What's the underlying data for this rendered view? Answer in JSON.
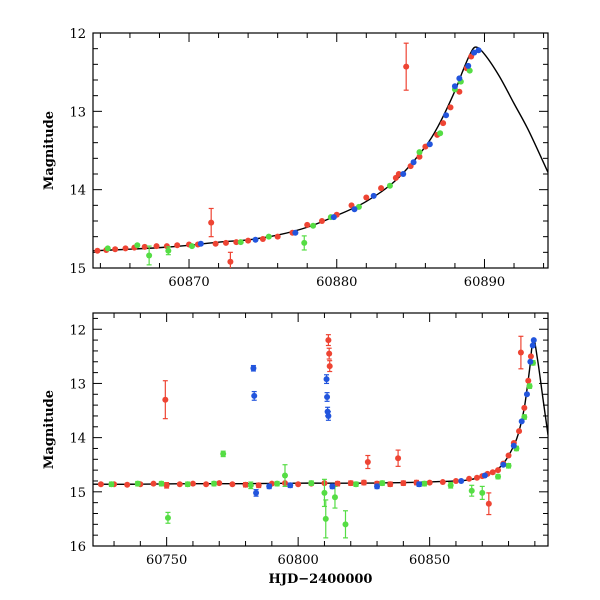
{
  "chart_data": [
    {
      "type": "scatter",
      "title": "",
      "xlabel": "",
      "ylabel": "Magnitude",
      "xlim": [
        60863.5,
        60894.3
      ],
      "ylim": [
        15.0,
        12.0
      ],
      "y_inverted": true,
      "grid": false,
      "xticks": [
        60870,
        60880,
        60890
      ],
      "xtick_labels": [
        "60870",
        "60880",
        "60890"
      ],
      "yticks": [
        12,
        13,
        14,
        15
      ],
      "ytick_labels": [
        "12",
        "13",
        "14",
        "15"
      ],
      "colors": {
        "red": "#ee4433",
        "green": "#55dd44",
        "blue": "#2255dd",
        "model": "#000000"
      },
      "model_curve": {
        "name": "",
        "points": [
          [
            60863.5,
            14.78
          ],
          [
            60866,
            14.76
          ],
          [
            60868,
            14.74
          ],
          [
            60870,
            14.71
          ],
          [
            60872,
            14.67
          ],
          [
            60874,
            14.64
          ],
          [
            60876,
            14.58
          ],
          [
            60878,
            14.48
          ],
          [
            60880,
            14.33
          ],
          [
            60882,
            14.15
          ],
          [
            60884,
            13.88
          ],
          [
            60886,
            13.45
          ],
          [
            60887,
            13.14
          ],
          [
            60888,
            12.74
          ],
          [
            60888.5,
            12.5
          ],
          [
            60889,
            12.28
          ],
          [
            60889.4,
            12.18
          ],
          [
            60890,
            12.27
          ],
          [
            60891,
            12.55
          ],
          [
            60892,
            12.9
          ],
          [
            60893,
            13.25
          ],
          [
            60894.3,
            13.78
          ]
        ]
      },
      "series": [
        {
          "color": "red",
          "points": [
            [
              60863.8,
              14.78
            ],
            [
              60864.4,
              14.77
            ],
            [
              60865,
              14.76
            ],
            [
              60865.7,
              14.75
            ],
            [
              60866.3,
              14.74
            ],
            [
              60867,
              14.73
            ],
            [
              60867.8,
              14.72
            ],
            [
              60868.5,
              14.72
            ],
            [
              60869.2,
              14.71
            ],
            [
              60870,
              14.7
            ],
            [
              60870.6,
              14.7
            ],
            [
              60871.5,
              14.42
            ],
            [
              60871.8,
              14.69
            ],
            [
              60872.5,
              14.68
            ],
            [
              60872.8,
              14.92
            ],
            [
              60873.2,
              14.67
            ],
            [
              60874,
              14.65
            ],
            [
              60875,
              14.63
            ],
            [
              60876,
              14.6
            ],
            [
              60877,
              14.55
            ],
            [
              60878,
              14.45
            ],
            [
              60879,
              14.4
            ],
            [
              60880,
              14.32
            ],
            [
              60881,
              14.2
            ],
            [
              60882,
              14.1
            ],
            [
              60883,
              13.98
            ],
            [
              60884,
              13.85
            ],
            [
              60884.2,
              13.8
            ],
            [
              60884.7,
              12.43
            ],
            [
              60885,
              13.7
            ],
            [
              60885.6,
              13.58
            ],
            [
              60886,
              13.45
            ],
            [
              60886.8,
              13.3
            ],
            [
              60887.2,
              13.15
            ],
            [
              60887.7,
              12.95
            ],
            [
              60888.3,
              12.75
            ],
            [
              60888.8,
              12.45
            ],
            [
              60889.1,
              12.3
            ]
          ],
          "errors": [
            0.02,
            0.02,
            0.02,
            0.02,
            0.02,
            0.02,
            0.02,
            0.02,
            0.02,
            0.02,
            0.02,
            0.18,
            0.02,
            0.02,
            0.12,
            0.02,
            0.02,
            0.02,
            0.02,
            0.02,
            0.02,
            0.02,
            0.02,
            0.02,
            0.02,
            0.02,
            0.02,
            0.02,
            0.3,
            0.02,
            0.02,
            0.02,
            0.02,
            0.02,
            0.02,
            0.02,
            0.02,
            0.02
          ]
        },
        {
          "color": "green",
          "points": [
            [
              60864.5,
              14.75
            ],
            [
              60866.5,
              14.71
            ],
            [
              60867.3,
              14.84
            ],
            [
              60868.6,
              14.78
            ],
            [
              60870.2,
              14.72
            ],
            [
              60873.5,
              14.67
            ],
            [
              60875.4,
              14.6
            ],
            [
              60877.8,
              14.68
            ],
            [
              60878.4,
              14.46
            ],
            [
              60879.6,
              14.35
            ],
            [
              60881.5,
              14.22
            ],
            [
              60883.6,
              13.95
            ],
            [
              60885.6,
              13.52
            ],
            [
              60887,
              13.28
            ],
            [
              60888,
              12.72
            ],
            [
              60888.4,
              12.62
            ],
            [
              60889,
              12.48
            ]
          ],
          "errors": [
            0.03,
            0.03,
            0.12,
            0.05,
            0.03,
            0.03,
            0.03,
            0.09,
            0.03,
            0.03,
            0.03,
            0.03,
            0.03,
            0.03,
            0.03,
            0.03,
            0.03
          ]
        },
        {
          "color": "blue",
          "points": [
            [
              60870.8,
              14.69
            ],
            [
              60874.5,
              14.64
            ],
            [
              60877.2,
              14.55
            ],
            [
              60879.8,
              14.35
            ],
            [
              60881.2,
              14.25
            ],
            [
              60882.5,
              14.08
            ],
            [
              60884.5,
              13.8
            ],
            [
              60885.2,
              13.65
            ],
            [
              60886.3,
              13.42
            ],
            [
              60887.4,
              13.05
            ],
            [
              60888,
              12.68
            ],
            [
              60888.3,
              12.58
            ],
            [
              60888.9,
              12.42
            ],
            [
              60889.3,
              12.25
            ],
            [
              60889.6,
              12.22
            ]
          ],
          "errors": [
            0.02,
            0.02,
            0.02,
            0.02,
            0.02,
            0.02,
            0.02,
            0.02,
            0.02,
            0.02,
            0.02,
            0.02,
            0.02,
            0.02,
            0.02
          ]
        }
      ]
    },
    {
      "type": "scatter",
      "title": "",
      "xlabel": "HJD−2400000",
      "ylabel": "Magnitude",
      "xlim": [
        60722,
        60895
      ],
      "ylim": [
        16.0,
        11.7
      ],
      "y_inverted": true,
      "grid": false,
      "xticks": [
        60750,
        60800,
        60850
      ],
      "xtick_labels": [
        "60750",
        "60800",
        "60850"
      ],
      "yticks": [
        12,
        13,
        14,
        15,
        16
      ],
      "ytick_labels": [
        "12",
        "13",
        "14",
        "15",
        "16"
      ],
      "colors": {
        "red": "#ee4433",
        "green": "#55dd44",
        "blue": "#2255dd",
        "model": "#000000"
      },
      "model_curve": {
        "name": "",
        "points": [
          [
            60722,
            14.86
          ],
          [
            60740,
            14.86
          ],
          [
            60760,
            14.85
          ],
          [
            60780,
            14.85
          ],
          [
            60800,
            14.84
          ],
          [
            60820,
            14.84
          ],
          [
            60840,
            14.83
          ],
          [
            60860,
            14.8
          ],
          [
            60866,
            14.77
          ],
          [
            60870,
            14.71
          ],
          [
            60874,
            14.64
          ],
          [
            60878,
            14.48
          ],
          [
            60882,
            14.15
          ],
          [
            60884,
            13.88
          ],
          [
            60886,
            13.45
          ],
          [
            60888,
            12.74
          ],
          [
            60889.4,
            12.18
          ],
          [
            60891,
            12.55
          ],
          [
            60893,
            13.25
          ],
          [
            60895,
            13.95
          ]
        ]
      },
      "series": [
        {
          "color": "red",
          "points": [
            [
              60725,
              14.86
            ],
            [
              60730,
              14.86
            ],
            [
              60735,
              14.87
            ],
            [
              60740,
              14.86
            ],
            [
              60745,
              14.85
            ],
            [
              60749.5,
              13.3
            ],
            [
              60750,
              14.88
            ],
            [
              60755,
              14.86
            ],
            [
              60760,
              14.85
            ],
            [
              60765,
              14.86
            ],
            [
              60770,
              14.84
            ],
            [
              60775,
              14.86
            ],
            [
              60780,
              14.87
            ],
            [
              60785,
              14.88
            ],
            [
              60790,
              14.85
            ],
            [
              60795,
              14.84
            ],
            [
              60800,
              14.86
            ],
            [
              60805,
              14.85
            ],
            [
              60810,
              14.84
            ],
            [
              60811.5,
              12.2
            ],
            [
              60811.8,
              12.45
            ],
            [
              60812,
              12.68
            ],
            [
              60815,
              14.85
            ],
            [
              60820,
              14.84
            ],
            [
              60825,
              14.83
            ],
            [
              60826.5,
              14.45
            ],
            [
              60830,
              14.85
            ],
            [
              60835,
              14.86
            ],
            [
              60838,
              14.38
            ],
            [
              60840,
              14.84
            ],
            [
              60845,
              14.83
            ],
            [
              60850,
              14.83
            ],
            [
              60855,
              14.82
            ],
            [
              60860,
              14.8
            ],
            [
              60865,
              14.76
            ],
            [
              60868,
              14.74
            ],
            [
              60870,
              14.71
            ],
            [
              60872,
              14.67
            ],
            [
              60872.5,
              15.22
            ],
            [
              60874,
              14.64
            ],
            [
              60876,
              14.6
            ],
            [
              60878,
              14.48
            ],
            [
              60880,
              14.33
            ],
            [
              60882,
              14.1
            ],
            [
              60884,
              13.88
            ],
            [
              60884.7,
              12.43
            ],
            [
              60886,
              13.45
            ],
            [
              60887.5,
              12.95
            ],
            [
              60888.5,
              12.5
            ]
          ],
          "errors": [
            0.03,
            0.03,
            0.03,
            0.03,
            0.03,
            0.35,
            0.05,
            0.03,
            0.03,
            0.03,
            0.03,
            0.03,
            0.04,
            0.04,
            0.03,
            0.03,
            0.03,
            0.03,
            0.03,
            0.1,
            0.1,
            0.1,
            0.04,
            0.04,
            0.04,
            0.12,
            0.04,
            0.04,
            0.15,
            0.04,
            0.04,
            0.03,
            0.03,
            0.03,
            0.03,
            0.03,
            0.03,
            0.03,
            0.2,
            0.03,
            0.03,
            0.03,
            0.03,
            0.03,
            0.03,
            0.3,
            0.03,
            0.03,
            0.03
          ]
        },
        {
          "color": "green",
          "points": [
            [
              60729,
              14.86
            ],
            [
              60739,
              14.85
            ],
            [
              60748,
              14.85
            ],
            [
              60750.5,
              15.48
            ],
            [
              60758,
              14.86
            ],
            [
              60768,
              14.85
            ],
            [
              60771.5,
              14.3
            ],
            [
              60782,
              14.88
            ],
            [
              60792,
              14.85
            ],
            [
              60795,
              14.7
            ],
            [
              60805,
              14.84
            ],
            [
              60810,
              15.02
            ],
            [
              60810.5,
              15.5
            ],
            [
              60814,
              15.1
            ],
            [
              60818,
              15.6
            ],
            [
              60822,
              14.86
            ],
            [
              60832,
              14.84
            ],
            [
              60848,
              14.85
            ],
            [
              60858,
              14.88
            ],
            [
              60866,
              14.98
            ],
            [
              60870,
              15.02
            ],
            [
              60876,
              14.72
            ],
            [
              60880,
              14.52
            ],
            [
              60883,
              14.2
            ],
            [
              60886,
              13.62
            ],
            [
              60888,
              13.05
            ],
            [
              60889.3,
              12.62
            ]
          ],
          "errors": [
            0.04,
            0.04,
            0.04,
            0.1,
            0.04,
            0.04,
            0.05,
            0.06,
            0.04,
            0.2,
            0.04,
            0.25,
            0.35,
            0.2,
            0.25,
            0.04,
            0.04,
            0.04,
            0.05,
            0.1,
            0.12,
            0.04,
            0.04,
            0.04,
            0.04,
            0.04,
            0.04
          ]
        },
        {
          "color": "blue",
          "points": [
            [
              60783,
              12.72
            ],
            [
              60783.3,
              13.23
            ],
            [
              60784,
              15.02
            ],
            [
              60789,
              14.9
            ],
            [
              60797,
              14.88
            ],
            [
              60810.8,
              12.92
            ],
            [
              60811,
              13.25
            ],
            [
              60811.2,
              13.52
            ],
            [
              60811.5,
              13.6
            ],
            [
              60813,
              14.9
            ],
            [
              60830,
              14.9
            ],
            [
              60846,
              14.86
            ],
            [
              60862,
              14.8
            ],
            [
              60871,
              14.7
            ],
            [
              60878,
              14.5
            ],
            [
              60882,
              14.15
            ],
            [
              60885,
              13.7
            ],
            [
              60887,
              13.2
            ],
            [
              60888.3,
              12.6
            ],
            [
              60889.2,
              12.3
            ],
            [
              60889.6,
              12.2
            ]
          ],
          "errors": [
            0.05,
            0.08,
            0.06,
            0.04,
            0.04,
            0.08,
            0.08,
            0.08,
            0.08,
            0.04,
            0.04,
            0.04,
            0.03,
            0.03,
            0.03,
            0.03,
            0.03,
            0.03,
            0.03,
            0.03,
            0.03
          ]
        }
      ]
    }
  ]
}
